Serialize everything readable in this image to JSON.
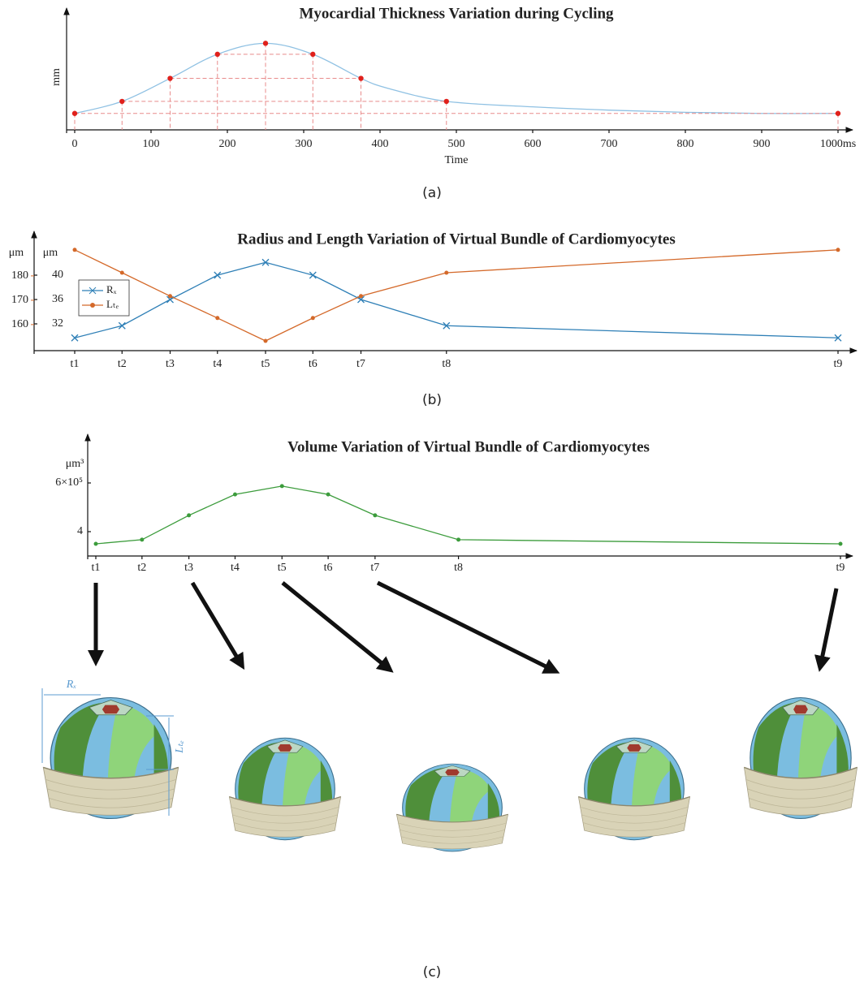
{
  "chart_data": [
    {
      "type": "line",
      "title": "Myocardial Thickness Variation during Cycling",
      "xlabel": "Time",
      "ylabel": "mm",
      "x": [
        0,
        62,
        125,
        187,
        250,
        312,
        375,
        410,
        487,
        600,
        700,
        800,
        900,
        1000
      ],
      "xlim": [
        0,
        1000
      ],
      "xticks": [
        0,
        100,
        200,
        300,
        400,
        500,
        600,
        700,
        800,
        900,
        {
          "value": 1000,
          "label": "1000ms"
        }
      ],
      "ylim": [
        0,
        10
      ],
      "series": [
        {
          "color": "#8fc1e3",
          "style": "smooth",
          "values": [
            1.5,
            2.6,
            4.7,
            6.9,
            7.9,
            6.9,
            4.7,
            3.8,
            2.6,
            2.1,
            1.8,
            1.6,
            1.5,
            1.5
          ]
        },
        {
          "color": "#e0201b",
          "style": "points",
          "guides": "#e88b8b",
          "values": [
            1.5,
            2.6,
            4.7,
            6.9,
            7.9,
            6.9,
            4.7,
            null,
            2.6,
            null,
            null,
            null,
            null,
            1.5
          ]
        }
      ]
    },
    {
      "type": "line",
      "title": "Radius and Length Variation of Virtual Bundle of Cardiomyocytes",
      "ylabel": "μm",
      "y2label": "μm",
      "x": [
        0,
        62,
        125,
        187,
        250,
        312,
        375,
        487,
        1000
      ],
      "xlim": [
        0,
        1000
      ],
      "xticks": [
        {
          "value": 0,
          "label": "t1"
        },
        {
          "value": 62,
          "label": "t2"
        },
        {
          "value": 125,
          "label": "t3"
        },
        {
          "value": 187,
          "label": "t4"
        },
        {
          "value": 250,
          "label": "t5"
        },
        {
          "value": 312,
          "label": "t6"
        },
        {
          "value": 375,
          "label": "t7"
        },
        {
          "value": 487,
          "label": "t8"
        },
        {
          "value": 1000,
          "label": "t9"
        }
      ],
      "ylim": [
        27.6,
        45.2
      ],
      "yticks": [
        32,
        36,
        40
      ],
      "y2lim": [
        149.3,
        193.3
      ],
      "y2ticks": [
        160,
        170,
        180
      ],
      "legend": "upper left",
      "series": [
        {
          "name": "Rₓ",
          "color": "#2e7fb6",
          "marker": "x",
          "axis": "y",
          "values": [
            29.7,
            31.7,
            36,
            40,
            42.1,
            40,
            36,
            31.7,
            29.7
          ]
        },
        {
          "name": "Lₜₑ",
          "color": "#d4692a",
          "marker": "dot",
          "axis": "y2",
          "values": [
            190.7,
            181.3,
            171.7,
            162.7,
            153.3,
            162.7,
            171.7,
            181.3,
            190.7
          ]
        }
      ]
    },
    {
      "type": "line",
      "title": "Volume Variation of Virtual Bundle of Cardiomyocytes",
      "ylabel": "μm³",
      "x": [
        0,
        62,
        125,
        187,
        250,
        312,
        375,
        487,
        1000
      ],
      "xlim": [
        0,
        1000
      ],
      "xticks": [
        {
          "value": 0,
          "label": "t1"
        },
        {
          "value": 62,
          "label": "t2"
        },
        {
          "value": 125,
          "label": "t3"
        },
        {
          "value": 187,
          "label": "t4"
        },
        {
          "value": 250,
          "label": "t5"
        },
        {
          "value": 312,
          "label": "t6"
        },
        {
          "value": 375,
          "label": "t7"
        },
        {
          "value": 487,
          "label": "t8"
        },
        {
          "value": 1000,
          "label": "t9"
        }
      ],
      "ylim": [
        3,
        7.5
      ],
      "yticks": [
        4,
        {
          "value": 6,
          "label": "6×10⁵"
        }
      ],
      "series": [
        {
          "color": "#3c9c3c",
          "marker": "dot",
          "values": [
            3.5,
            3.67,
            4.67,
            5.53,
            5.87,
            5.53,
            4.67,
            3.67,
            3.5
          ]
        }
      ]
    }
  ],
  "captions": [
    "(a)",
    "(b)",
    "(c)"
  ],
  "illustration": {
    "labels": [
      "Rₓ",
      "Lₜₑ"
    ]
  }
}
